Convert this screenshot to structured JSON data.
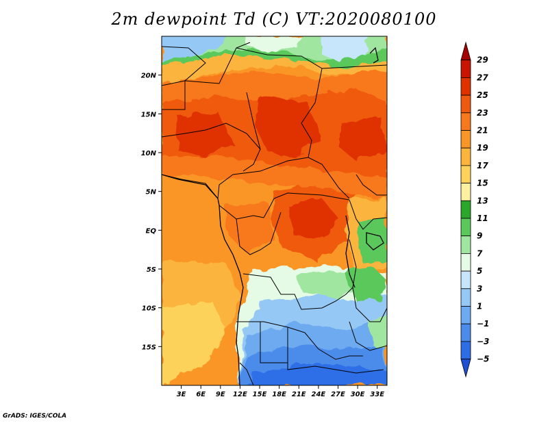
{
  "title": "2m dewpoint Td (C) VT:2020080100",
  "credit": "GrADS: IGES/COLA",
  "map": {
    "lon_range": [
      0,
      34.5
    ],
    "lat_range": [
      -20,
      25
    ],
    "x_ticks": [
      {
        "lon": 3,
        "label": "3E"
      },
      {
        "lon": 6,
        "label": "6E"
      },
      {
        "lon": 9,
        "label": "9E"
      },
      {
        "lon": 12,
        "label": "12E"
      },
      {
        "lon": 15,
        "label": "15E"
      },
      {
        "lon": 18,
        "label": "18E"
      },
      {
        "lon": 21,
        "label": "21E"
      },
      {
        "lon": 24,
        "label": "24E"
      },
      {
        "lon": 27,
        "label": "27E"
      },
      {
        "lon": 30,
        "label": "30E"
      },
      {
        "lon": 33,
        "label": "33E"
      }
    ],
    "y_ticks": [
      {
        "lat": 20,
        "label": "20N"
      },
      {
        "lat": 15,
        "label": "15N"
      },
      {
        "lat": 10,
        "label": "10N"
      },
      {
        "lat": 5,
        "label": "5N"
      },
      {
        "lat": 0,
        "label": "EQ"
      },
      {
        "lat": -5,
        "label": "5S"
      },
      {
        "lat": -10,
        "label": "10S"
      },
      {
        "lat": -15,
        "label": "15S"
      }
    ]
  },
  "colorbar": {
    "levels": [
      29,
      27,
      25,
      23,
      21,
      19,
      17,
      15,
      13,
      11,
      9,
      7,
      5,
      3,
      1,
      -1,
      -3,
      -5
    ],
    "labels": [
      "29",
      "27",
      "25",
      "23",
      "21",
      "19",
      "17",
      "15",
      "13",
      "11",
      "9",
      "7",
      "5",
      "3",
      "1",
      "−1",
      "−3",
      "−5"
    ],
    "colors": [
      "#a50000",
      "#c81400",
      "#e03200",
      "#ef5a10",
      "#f8781e",
      "#fa9628",
      "#fbb43c",
      "#fdd25a",
      "#fdf0a0",
      "#2ba82b",
      "#5ac85a",
      "#a0e6a0",
      "#e6fbe6",
      "#c8e6fb",
      "#96c8f5",
      "#6eaaf0",
      "#4b8ceb",
      "#2d6ee6",
      "#1e50d2"
    ]
  }
}
